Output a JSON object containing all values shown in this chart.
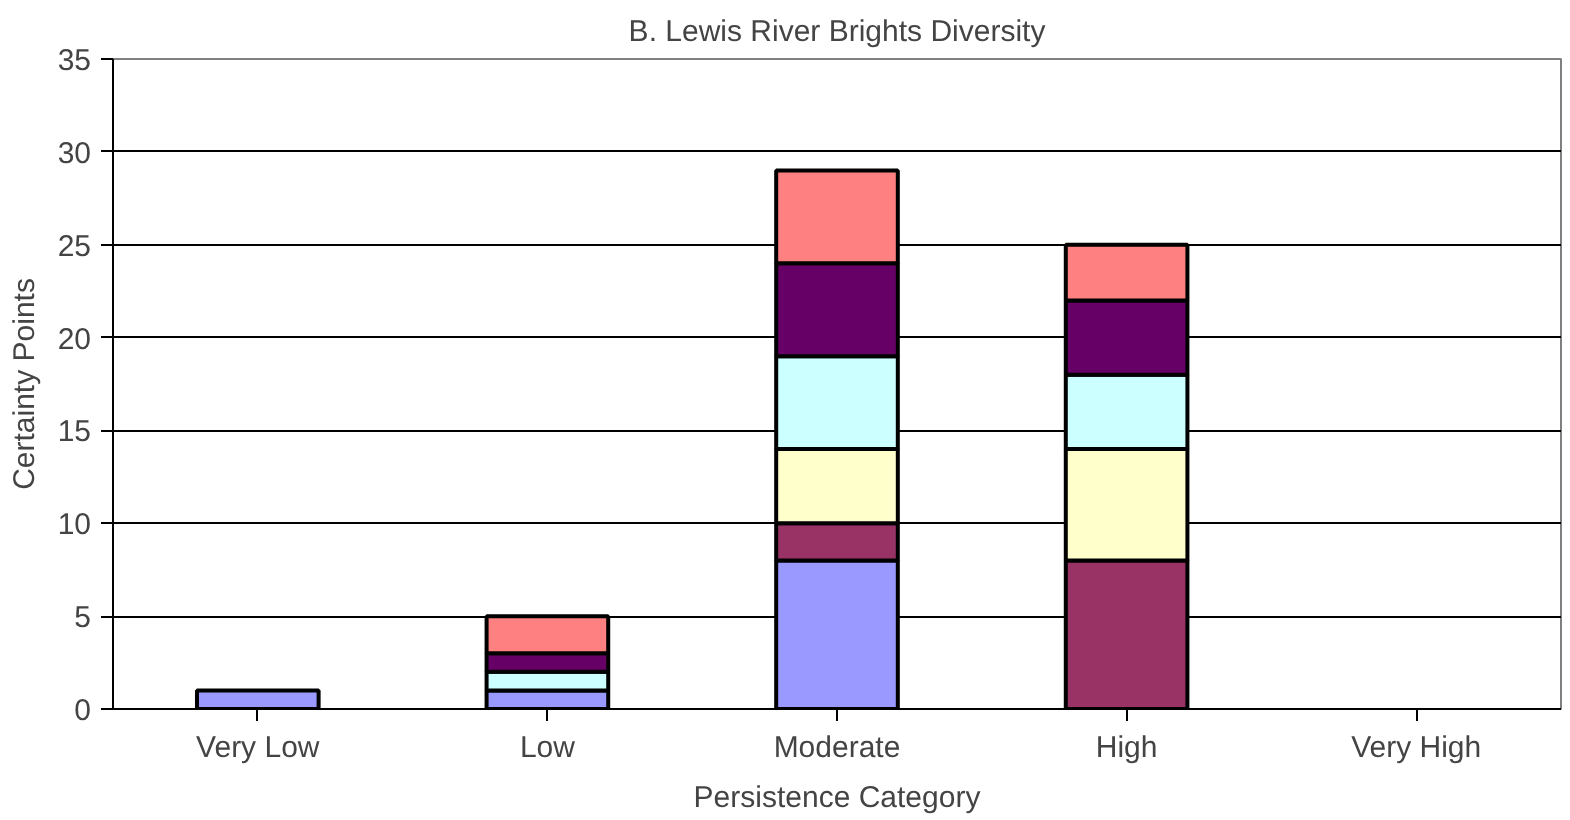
{
  "chart_data": {
    "type": "bar",
    "stacked": true,
    "title": "B. Lewis River Brights Diversity",
    "xlabel": "Persistence Category",
    "ylabel": "Certainty Points",
    "categories": [
      "Very Low",
      "Low",
      "Moderate",
      "High",
      "Very High"
    ],
    "series": [
      {
        "color": "#9999ff",
        "values": [
          1,
          1,
          8,
          0,
          0
        ]
      },
      {
        "color": "#993366",
        "values": [
          0,
          0,
          2,
          8,
          0
        ]
      },
      {
        "color": "#ffffcc",
        "values": [
          0,
          0,
          4,
          6,
          0
        ]
      },
      {
        "color": "#ccffff",
        "values": [
          0,
          1,
          5,
          4,
          0
        ]
      },
      {
        "color": "#660066",
        "values": [
          0,
          1,
          5,
          4,
          0
        ]
      },
      {
        "color": "#ff8080",
        "values": [
          0,
          2,
          5,
          3,
          0
        ]
      }
    ],
    "ylim": [
      0,
      35
    ],
    "yticks": [
      0,
      5,
      10,
      15,
      20,
      25,
      30,
      35
    ],
    "grid": "y"
  }
}
